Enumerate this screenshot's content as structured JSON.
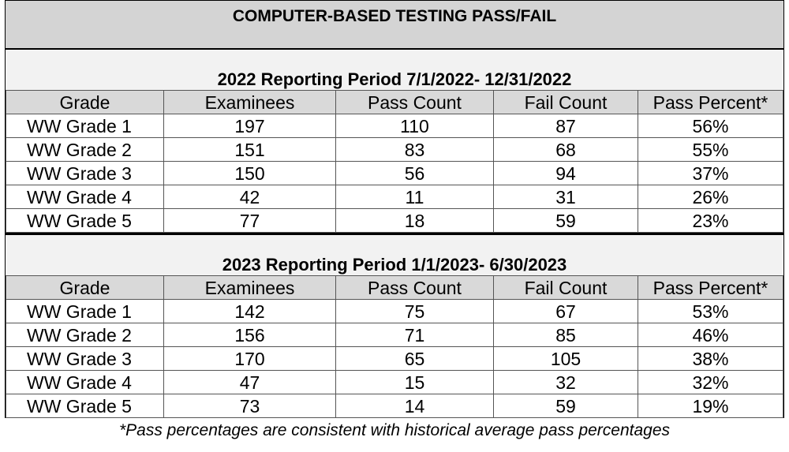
{
  "title": "COMPUTER-BASED TESTING PASS/FAIL",
  "columns": [
    "Grade",
    "Examinees",
    "Pass Count",
    "Fail Count",
    "Pass Percent*"
  ],
  "periods": [
    {
      "heading": "2022 Reporting Period 7/1/2022- 12/31/2022",
      "rows": [
        [
          "WW Grade 1",
          "197",
          "110",
          "87",
          "56%"
        ],
        [
          "WW Grade 2",
          "151",
          "83",
          "68",
          "55%"
        ],
        [
          "WW Grade 3",
          "150",
          "56",
          "94",
          "37%"
        ],
        [
          "WW Grade 4",
          "42",
          "11",
          "31",
          "26%"
        ],
        [
          "WW Grade 5",
          "77",
          "18",
          "59",
          "23%"
        ]
      ]
    },
    {
      "heading": "2023 Reporting Period 1/1/2023- 6/30/2023",
      "rows": [
        [
          "WW Grade 1",
          "142",
          "75",
          "67",
          "53%"
        ],
        [
          "WW Grade 2",
          "156",
          "71",
          "85",
          "46%"
        ],
        [
          "WW Grade 3",
          "170",
          "65",
          "105",
          "38%"
        ],
        [
          "WW Grade 4",
          "47",
          "15",
          "32",
          "32%"
        ],
        [
          "WW Grade 5",
          "73",
          "14",
          "59",
          "19%"
        ]
      ]
    }
  ],
  "footnote": "*Pass percentages are consistent with historical average pass percentages"
}
